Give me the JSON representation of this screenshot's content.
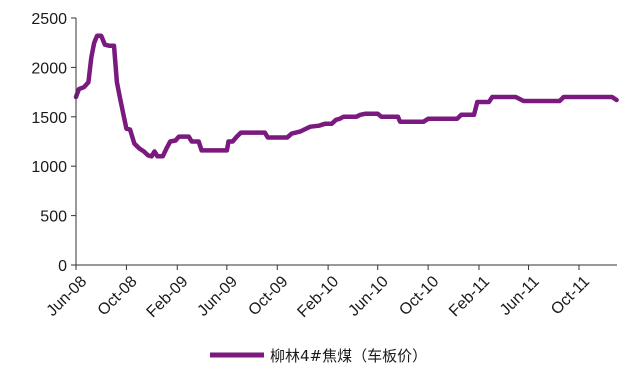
{
  "chart_data": {
    "type": "line",
    "title": "",
    "xlabel": "",
    "ylabel": "",
    "ylim": [
      0,
      2500
    ],
    "grid": false,
    "legend_position": "bottom",
    "y_ticks": [
      "0",
      "500",
      "1000",
      "1500",
      "2000",
      "2500"
    ],
    "x_ticks": [
      {
        "label": "Jun-08",
        "date": "2008-06-01"
      },
      {
        "label": "Oct-08",
        "date": "2008-10-01"
      },
      {
        "label": "Feb-09",
        "date": "2009-02-01"
      },
      {
        "label": "Jun-09",
        "date": "2009-06-01"
      },
      {
        "label": "Oct-09",
        "date": "2009-10-01"
      },
      {
        "label": "Feb-10",
        "date": "2010-02-01"
      },
      {
        "label": "Jun-10",
        "date": "2010-06-01"
      },
      {
        "label": "Oct-10",
        "date": "2010-10-01"
      },
      {
        "label": "Feb-11",
        "date": "2011-02-01"
      },
      {
        "label": "Jun-11",
        "date": "2011-06-01"
      },
      {
        "label": "Oct-11",
        "date": "2011-10-01"
      }
    ],
    "x_range": [
      "2008-06-01",
      "2012-01-01"
    ],
    "series": [
      {
        "name": "柳林4#焦煤（车板价）",
        "color": "#7b1a7e",
        "points": [
          [
            "2008-06-01",
            1700
          ],
          [
            "2008-06-08",
            1780
          ],
          [
            "2008-06-20",
            1800
          ],
          [
            "2008-07-01",
            1850
          ],
          [
            "2008-07-08",
            2100
          ],
          [
            "2008-07-15",
            2250
          ],
          [
            "2008-07-22",
            2320
          ],
          [
            "2008-08-01",
            2320
          ],
          [
            "2008-08-10",
            2230
          ],
          [
            "2008-08-20",
            2220
          ],
          [
            "2008-09-01",
            2220
          ],
          [
            "2008-09-08",
            1850
          ],
          [
            "2008-09-15",
            1700
          ],
          [
            "2008-09-25",
            1500
          ],
          [
            "2008-10-01",
            1380
          ],
          [
            "2008-10-10",
            1370
          ],
          [
            "2008-10-20",
            1230
          ],
          [
            "2008-11-01",
            1180
          ],
          [
            "2008-11-12",
            1150
          ],
          [
            "2008-11-22",
            1110
          ],
          [
            "2008-12-01",
            1100
          ],
          [
            "2008-12-08",
            1150
          ],
          [
            "2008-12-15",
            1100
          ],
          [
            "2008-12-28",
            1100
          ],
          [
            "2009-01-06",
            1180
          ],
          [
            "2009-01-15",
            1250
          ],
          [
            "2009-01-28",
            1260
          ],
          [
            "2009-02-05",
            1300
          ],
          [
            "2009-03-01",
            1300
          ],
          [
            "2009-03-08",
            1250
          ],
          [
            "2009-03-25",
            1250
          ],
          [
            "2009-04-01",
            1160
          ],
          [
            "2009-06-01",
            1160
          ],
          [
            "2009-06-05",
            1250
          ],
          [
            "2009-06-15",
            1250
          ],
          [
            "2009-06-25",
            1300
          ],
          [
            "2009-07-05",
            1340
          ],
          [
            "2009-09-01",
            1340
          ],
          [
            "2009-09-08",
            1290
          ],
          [
            "2009-10-25",
            1290
          ],
          [
            "2009-11-05",
            1330
          ],
          [
            "2009-11-25",
            1350
          ],
          [
            "2009-12-05",
            1370
          ],
          [
            "2009-12-20",
            1400
          ],
          [
            "2010-01-10",
            1410
          ],
          [
            "2010-01-25",
            1430
          ],
          [
            "2010-02-10",
            1430
          ],
          [
            "2010-02-20",
            1470
          ],
          [
            "2010-03-01",
            1480
          ],
          [
            "2010-03-10",
            1500
          ],
          [
            "2010-04-10",
            1500
          ],
          [
            "2010-04-20",
            1520
          ],
          [
            "2010-05-01",
            1530
          ],
          [
            "2010-06-01",
            1530
          ],
          [
            "2010-06-10",
            1500
          ],
          [
            "2010-07-20",
            1500
          ],
          [
            "2010-07-25",
            1450
          ],
          [
            "2010-09-20",
            1450
          ],
          [
            "2010-10-01",
            1480
          ],
          [
            "2010-12-10",
            1480
          ],
          [
            "2010-12-20",
            1520
          ],
          [
            "2011-01-20",
            1520
          ],
          [
            "2011-01-28",
            1650
          ],
          [
            "2011-02-25",
            1650
          ],
          [
            "2011-03-05",
            1700
          ],
          [
            "2011-05-01",
            1700
          ],
          [
            "2011-05-20",
            1660
          ],
          [
            "2011-08-15",
            1660
          ],
          [
            "2011-08-25",
            1700
          ],
          [
            "2011-12-20",
            1700
          ],
          [
            "2011-12-31",
            1670
          ]
        ]
      }
    ]
  }
}
